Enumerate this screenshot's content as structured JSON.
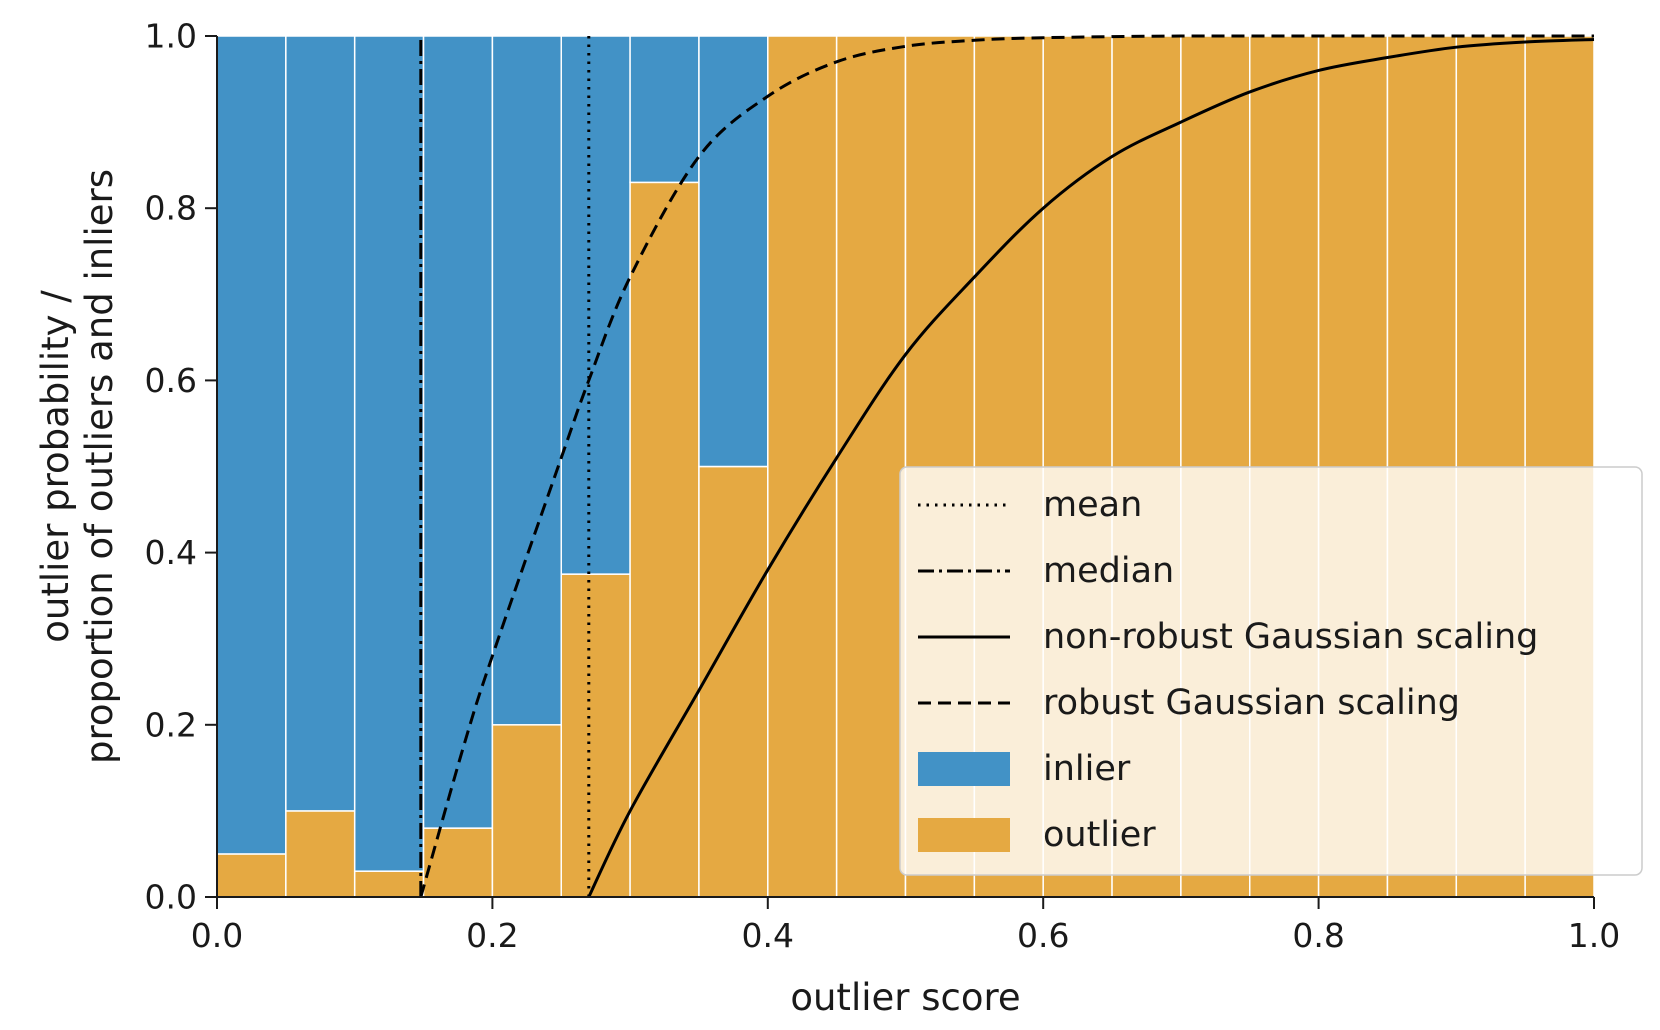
{
  "chart_data": {
    "type": "bar",
    "xlabel": "outlier score",
    "ylabel": [
      "outlier probability /",
      "proportion of outliers and inliers"
    ],
    "xlim": [
      0.0,
      1.0
    ],
    "ylim": [
      0.0,
      1.0
    ],
    "xticks": [
      "0.0",
      "0.2",
      "0.4",
      "0.6",
      "0.8",
      "1.0"
    ],
    "yticks": [
      "0.0",
      "0.2",
      "0.4",
      "0.6",
      "0.8",
      "1.0"
    ],
    "bin_width": 0.05,
    "bins": [
      0.0,
      0.05,
      0.1,
      0.15,
      0.2,
      0.25,
      0.3,
      0.35,
      0.4,
      0.45,
      0.5,
      0.55,
      0.6,
      0.65,
      0.7,
      0.75,
      0.8,
      0.85,
      0.9,
      0.95
    ],
    "series": [
      {
        "name": "outlier",
        "color": "#E5A942",
        "values": [
          0.05,
          0.1,
          0.03,
          0.08,
          0.2,
          0.375,
          0.83,
          0.5,
          1,
          1,
          1,
          1,
          1,
          1,
          1,
          1,
          1,
          1,
          1,
          1
        ]
      },
      {
        "name": "inlier",
        "color": "#4292C6",
        "values": [
          0.95,
          0.9,
          0.97,
          0.92,
          0.8,
          0.625,
          0.17,
          0.5,
          0,
          0,
          0,
          0,
          0,
          0,
          0,
          0,
          0,
          0,
          0,
          0
        ]
      }
    ],
    "vlines": [
      {
        "name": "mean",
        "x": 0.27,
        "style": "dotted"
      },
      {
        "name": "median",
        "x": 0.148,
        "style": "dashdot"
      }
    ],
    "curves": [
      {
        "name": "non-robust Gaussian scaling",
        "style": "solid",
        "x": [
          0.27,
          0.3,
          0.35,
          0.4,
          0.45,
          0.5,
          0.55,
          0.6,
          0.65,
          0.7,
          0.75,
          0.8,
          0.85,
          0.9,
          0.95,
          1.0
        ],
        "y": [
          0.0,
          0.1,
          0.24,
          0.38,
          0.51,
          0.63,
          0.72,
          0.8,
          0.86,
          0.9,
          0.935,
          0.96,
          0.975,
          0.987,
          0.993,
          0.996
        ]
      },
      {
        "name": "robust Gaussian scaling",
        "style": "dashed",
        "x": [
          0.148,
          0.18,
          0.2,
          0.25,
          0.27,
          0.3,
          0.35,
          0.4,
          0.45,
          0.5,
          0.55,
          0.6,
          0.7,
          0.8,
          1.0
        ],
        "y": [
          0.0,
          0.18,
          0.28,
          0.51,
          0.6,
          0.72,
          0.86,
          0.93,
          0.97,
          0.988,
          0.995,
          0.998,
          1.0,
          1.0,
          1.0
        ]
      }
    ],
    "legend": {
      "placement": "lower right",
      "entries": [
        {
          "label": "mean",
          "kind": "line",
          "style": "dotted"
        },
        {
          "label": "median",
          "kind": "line",
          "style": "dashdot"
        },
        {
          "label": "non-robust Gaussian scaling",
          "kind": "line",
          "style": "solid"
        },
        {
          "label": "robust Gaussian scaling",
          "kind": "line",
          "style": "dashed"
        },
        {
          "label": "inlier",
          "kind": "patch",
          "color": "#4292C6"
        },
        {
          "label": "outlier",
          "kind": "patch",
          "color": "#E5A942"
        }
      ]
    }
  }
}
